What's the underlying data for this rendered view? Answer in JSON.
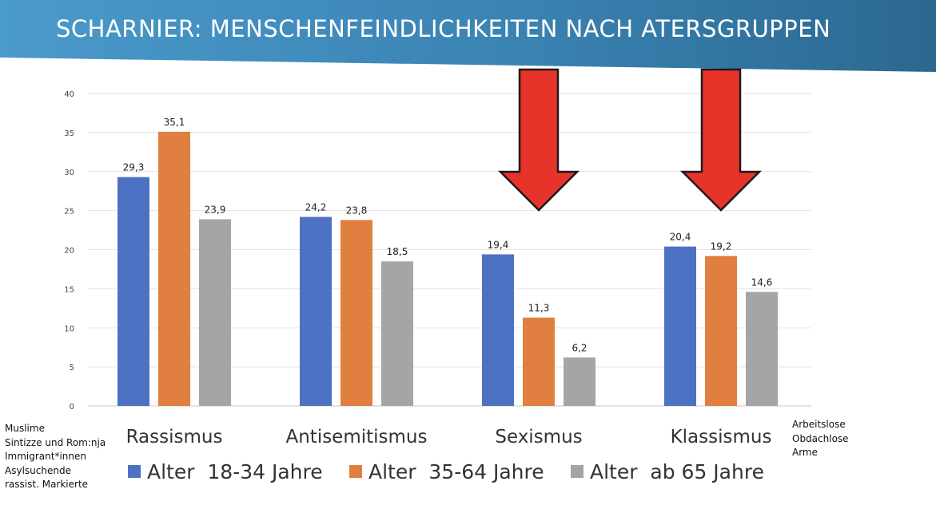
{
  "slide": {
    "title": "SCHARNIER: MENSCHENFEINDLICHKEITEN NACH ATERSGRUPPEN",
    "header_color": "#3a7fad"
  },
  "notes": {
    "left": [
      "Muslime",
      "Sintizze und Rom:nja",
      "Immigrant*innen",
      "Asylsuchende",
      "rassist. Markierte"
    ],
    "right": [
      "Arbeitslose",
      "Obdachlose",
      "Arme"
    ]
  },
  "arrows": {
    "color": "#e8332a",
    "targets": [
      "Sexismus",
      "Klassismus"
    ]
  },
  "chart_data": {
    "type": "bar",
    "categories": [
      "Rassismus",
      "Antisemitismus",
      "Sexismus",
      "Klassismus"
    ],
    "series": [
      {
        "name": "Alter  18-34 Jahre",
        "color": "#4d72c4",
        "values": [
          29.3,
          24.2,
          19.4,
          20.4
        ],
        "labels": [
          "29,3",
          "24,2",
          "19,4",
          "20,4"
        ]
      },
      {
        "name": "Alter  35-64 Jahre",
        "color": "#e07f3f",
        "values": [
          35.1,
          23.8,
          11.3,
          19.2
        ],
        "labels": [
          "35,1",
          "23,8",
          "11,3",
          "19,2"
        ]
      },
      {
        "name": "Alter  ab 65 Jahre",
        "color": "#a5a5a5",
        "values": [
          23.9,
          18.5,
          6.2,
          14.6
        ],
        "labels": [
          "23,9",
          "18,5",
          "6,2",
          "14,6"
        ]
      }
    ],
    "yticks": [
      "0",
      "5",
      "10",
      "15",
      "20",
      "25",
      "30",
      "35",
      "40"
    ],
    "ylim": [
      0,
      40
    ],
    "grid": true,
    "legend_position": "bottom"
  }
}
